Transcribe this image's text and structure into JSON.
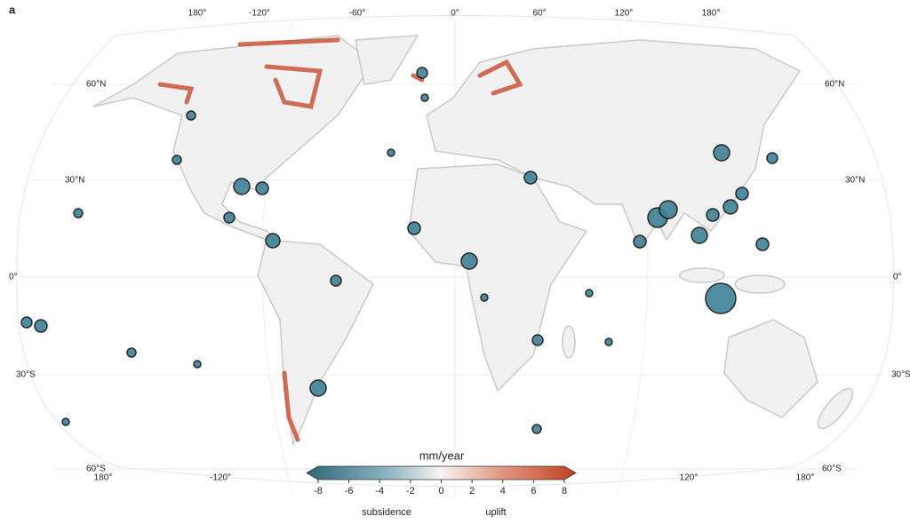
{
  "panel_label": "a",
  "graticule": {
    "top_labels": [
      "180°",
      "-120°",
      "-60°",
      "0°",
      "60°",
      "120°",
      "180°"
    ],
    "bottom_labels": [
      "180°",
      "-120°",
      "120°",
      "180°"
    ],
    "left_labels": [
      "60°N",
      "30°N",
      "0°",
      "30°S",
      "60°S"
    ],
    "right_labels": [
      "60°N",
      "30°N",
      "0°",
      "30°S",
      "60°S"
    ]
  },
  "colorbar": {
    "title": "mm/year",
    "range": [
      -8,
      8
    ],
    "ticks": [
      -8,
      -6,
      -4,
      -2,
      0,
      2,
      4,
      6,
      8
    ],
    "low_label": "subsidence",
    "high_label": "uplift"
  }
}
